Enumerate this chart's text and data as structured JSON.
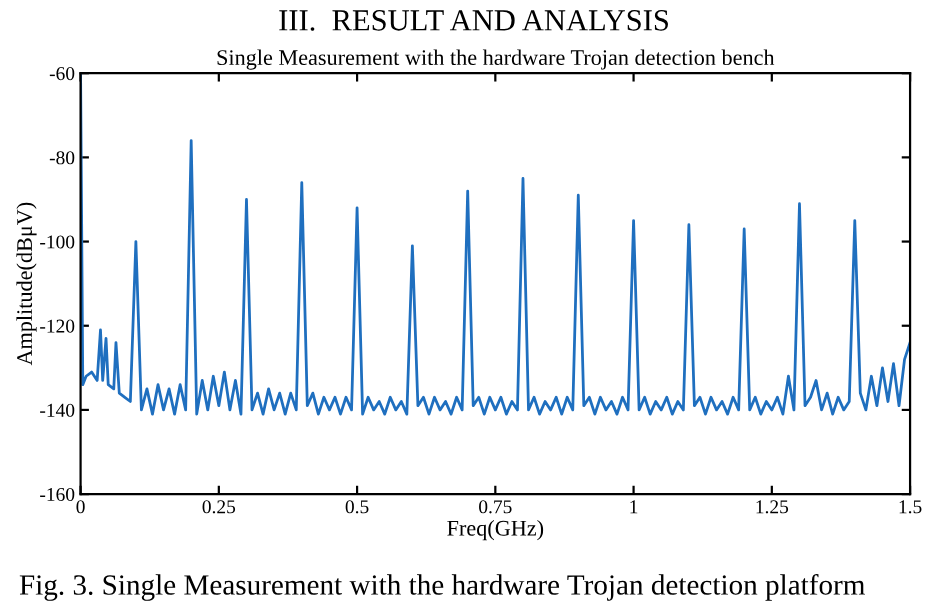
{
  "chart_data": {
    "type": "line",
    "title": "Single Measurement with the hardware Trojan detection bench",
    "xlabel": "Freq(GHz)",
    "ylabel": "Amplitude(dBμV)",
    "annotations": [
      "III.  RESULT AND ANALYSIS",
      "Fig. 3. Single Measurement with the hardware Trojan detection platform"
    ],
    "xlim": [
      0,
      1.5
    ],
    "xticks": [
      0,
      0.25,
      0.5,
      0.75,
      1,
      1.25,
      1.5
    ],
    "ylim": [
      -160,
      -60
    ],
    "yticks": [
      -160,
      -140,
      -120,
      -100,
      -80,
      -60
    ],
    "grid": false,
    "line_style": "solid",
    "series": [
      {
        "color": "#1f6fbf",
        "x": [
          0,
          0.004,
          0.01,
          0.02,
          0.03,
          0.036,
          0.04,
          0.046,
          0.05,
          0.06,
          0.064,
          0.07,
          0.08,
          0.09,
          0.1,
          0.11,
          0.12,
          0.13,
          0.14,
          0.15,
          0.16,
          0.17,
          0.18,
          0.19,
          0.2,
          0.21,
          0.22,
          0.23,
          0.24,
          0.25,
          0.26,
          0.27,
          0.28,
          0.29,
          0.3,
          0.31,
          0.32,
          0.33,
          0.34,
          0.35,
          0.36,
          0.37,
          0.38,
          0.39,
          0.4,
          0.41,
          0.42,
          0.43,
          0.44,
          0.45,
          0.46,
          0.47,
          0.48,
          0.49,
          0.5,
          0.51,
          0.52,
          0.53,
          0.54,
          0.55,
          0.56,
          0.57,
          0.58,
          0.59,
          0.6,
          0.61,
          0.62,
          0.63,
          0.64,
          0.65,
          0.66,
          0.67,
          0.68,
          0.69,
          0.7,
          0.71,
          0.72,
          0.73,
          0.74,
          0.75,
          0.76,
          0.77,
          0.78,
          0.79,
          0.8,
          0.81,
          0.82,
          0.83,
          0.84,
          0.85,
          0.86,
          0.87,
          0.88,
          0.89,
          0.9,
          0.91,
          0.92,
          0.93,
          0.94,
          0.95,
          0.96,
          0.97,
          0.98,
          0.99,
          1.0,
          1.01,
          1.02,
          1.03,
          1.04,
          1.05,
          1.06,
          1.07,
          1.08,
          1.09,
          1.1,
          1.11,
          1.12,
          1.13,
          1.14,
          1.15,
          1.16,
          1.17,
          1.18,
          1.19,
          1.2,
          1.21,
          1.22,
          1.23,
          1.24,
          1.25,
          1.26,
          1.27,
          1.28,
          1.29,
          1.3,
          1.31,
          1.32,
          1.33,
          1.34,
          1.35,
          1.36,
          1.37,
          1.38,
          1.39,
          1.4,
          1.41,
          1.42,
          1.43,
          1.44,
          1.45,
          1.46,
          1.47,
          1.48,
          1.49,
          1.5
        ],
        "values": [
          -60,
          -134,
          -132,
          -131,
          -133,
          -121,
          -133,
          -123,
          -134,
          -135,
          -124,
          -136,
          -137,
          -138,
          -100,
          -140,
          -135,
          -141,
          -134,
          -140,
          -135,
          -141,
          -134,
          -140,
          -76,
          -141,
          -133,
          -140,
          -132,
          -139,
          -131,
          -140,
          -133,
          -141,
          -90,
          -140,
          -136,
          -141,
          -135,
          -140,
          -136,
          -141,
          -136,
          -140,
          -86,
          -139,
          -136,
          -141,
          -137,
          -140,
          -137,
          -141,
          -137,
          -140,
          -92,
          -141,
          -137,
          -140,
          -138,
          -141,
          -137,
          -140,
          -138,
          -141,
          -101,
          -139,
          -137,
          -141,
          -137,
          -140,
          -138,
          -141,
          -137,
          -140,
          -88,
          -139,
          -137,
          -141,
          -137,
          -140,
          -137,
          -141,
          -138,
          -140,
          -85,
          -140,
          -137,
          -141,
          -138,
          -140,
          -137,
          -141,
          -137,
          -140,
          -89,
          -139,
          -137,
          -141,
          -137,
          -140,
          -138,
          -141,
          -137,
          -140,
          -95,
          -140,
          -137,
          -141,
          -138,
          -140,
          -137,
          -141,
          -138,
          -140,
          -96,
          -139,
          -137,
          -141,
          -137,
          -140,
          -138,
          -141,
          -137,
          -140,
          -97,
          -140,
          -137,
          -141,
          -138,
          -140,
          -137,
          -141,
          -132,
          -140,
          -91,
          -139,
          -137,
          -133,
          -140,
          -136,
          -141,
          -137,
          -140,
          -138,
          -95,
          -136,
          -140,
          -132,
          -139,
          -130,
          -138,
          -129,
          -139,
          -128,
          -124
        ]
      }
    ]
  }
}
